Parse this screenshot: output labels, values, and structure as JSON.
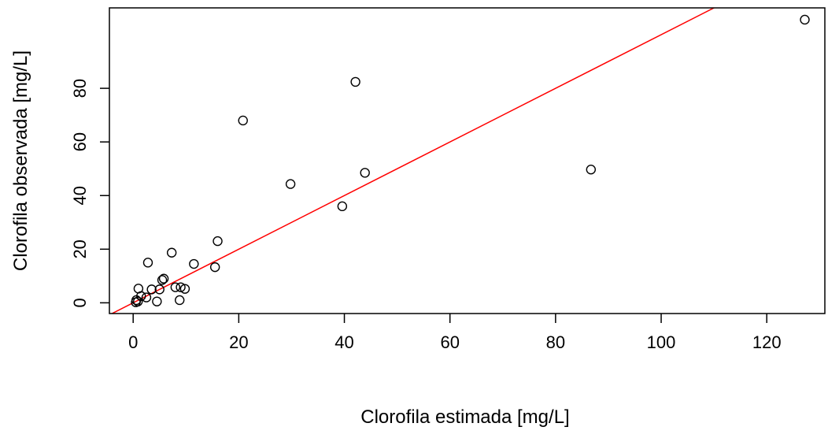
{
  "chart_data": {
    "type": "scatter",
    "title": "",
    "xlabel": "Clorofila estimada [mg/L]",
    "ylabel": "Clorofila observada [mg/L]",
    "xlim": [
      -4.5,
      131
    ],
    "ylim": [
      -4,
      110
    ],
    "x_ticks": [
      0,
      20,
      40,
      60,
      80,
      100,
      120
    ],
    "y_ticks": [
      0,
      20,
      40,
      60,
      80
    ],
    "grid": false,
    "marker": "open-circle",
    "point_color": "#000000",
    "line_color": "#ff0000",
    "fit_line": {
      "intercept": 0,
      "slope": 1
    },
    "points": [
      {
        "x": 0.5,
        "y": 0.2
      },
      {
        "x": 0.6,
        "y": 1.0
      },
      {
        "x": 0.9,
        "y": 0.5
      },
      {
        "x": 1.0,
        "y": 5.3
      },
      {
        "x": 1.5,
        "y": 2.5
      },
      {
        "x": 2.5,
        "y": 2.0
      },
      {
        "x": 2.8,
        "y": 15.0
      },
      {
        "x": 3.5,
        "y": 5.0
      },
      {
        "x": 4.5,
        "y": 0.5
      },
      {
        "x": 5.0,
        "y": 5.0
      },
      {
        "x": 5.5,
        "y": 8.5
      },
      {
        "x": 5.8,
        "y": 9.0
      },
      {
        "x": 7.3,
        "y": 18.7
      },
      {
        "x": 8.0,
        "y": 5.8
      },
      {
        "x": 8.8,
        "y": 1.0
      },
      {
        "x": 9.0,
        "y": 5.8
      },
      {
        "x": 9.8,
        "y": 5.2
      },
      {
        "x": 11.5,
        "y": 14.5
      },
      {
        "x": 15.5,
        "y": 13.3
      },
      {
        "x": 16.0,
        "y": 23.0
      },
      {
        "x": 20.8,
        "y": 68.0
      },
      {
        "x": 29.8,
        "y": 44.3
      },
      {
        "x": 39.6,
        "y": 36.0
      },
      {
        "x": 42.1,
        "y": 82.4
      },
      {
        "x": 43.9,
        "y": 48.5
      },
      {
        "x": 86.7,
        "y": 49.7
      },
      {
        "x": 127.2,
        "y": 105.6
      }
    ]
  }
}
